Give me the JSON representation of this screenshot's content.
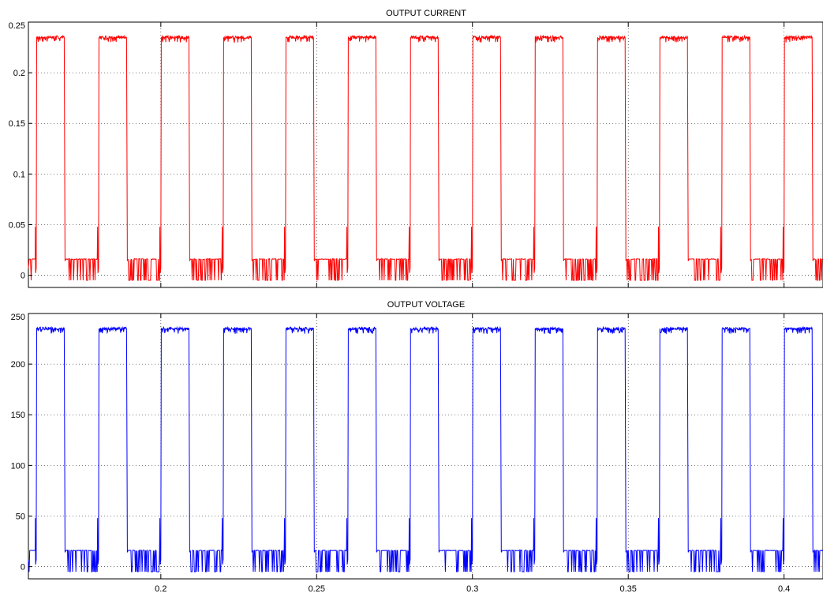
{
  "chart_data": [
    {
      "type": "line",
      "title": "OUTPUT CURRENT",
      "color": "#ff0000",
      "xlim": [
        0.1575,
        0.4125
      ],
      "ylim": [
        -0.012,
        0.25
      ],
      "yticks": [
        0,
        0.05,
        0.1,
        0.15,
        0.2,
        0.25
      ],
      "ytick_labels": [
        "0",
        "0.05",
        "0.1",
        "0.15",
        "0.2",
        "0.25"
      ],
      "grid": true,
      "waveform": {
        "period": 0.02,
        "pulse_start": 0.16,
        "pulse_width": 0.009,
        "high": 0.235,
        "low": -0.005,
        "ripple_top": 0.016,
        "spike": 0.048
      }
    },
    {
      "type": "line",
      "title": "OUTPUT VOLTAGE",
      "color": "#0000ff",
      "xlim": [
        0.1575,
        0.4125
      ],
      "ylim": [
        -12,
        250
      ],
      "yticks": [
        0,
        50,
        100,
        150,
        200,
        250
      ],
      "ytick_labels": [
        "0",
        "50",
        "100",
        "150",
        "200",
        "250"
      ],
      "xticks": [
        0.2,
        0.25,
        0.3,
        0.35,
        0.4
      ],
      "xtick_labels": [
        "0.2",
        "0.25",
        "0.3",
        "0.35",
        "0.4"
      ],
      "grid": true,
      "waveform": {
        "period": 0.02,
        "pulse_start": 0.16,
        "pulse_width": 0.009,
        "high": 235,
        "low": -5,
        "ripple_top": 16,
        "spike": 48
      }
    }
  ]
}
